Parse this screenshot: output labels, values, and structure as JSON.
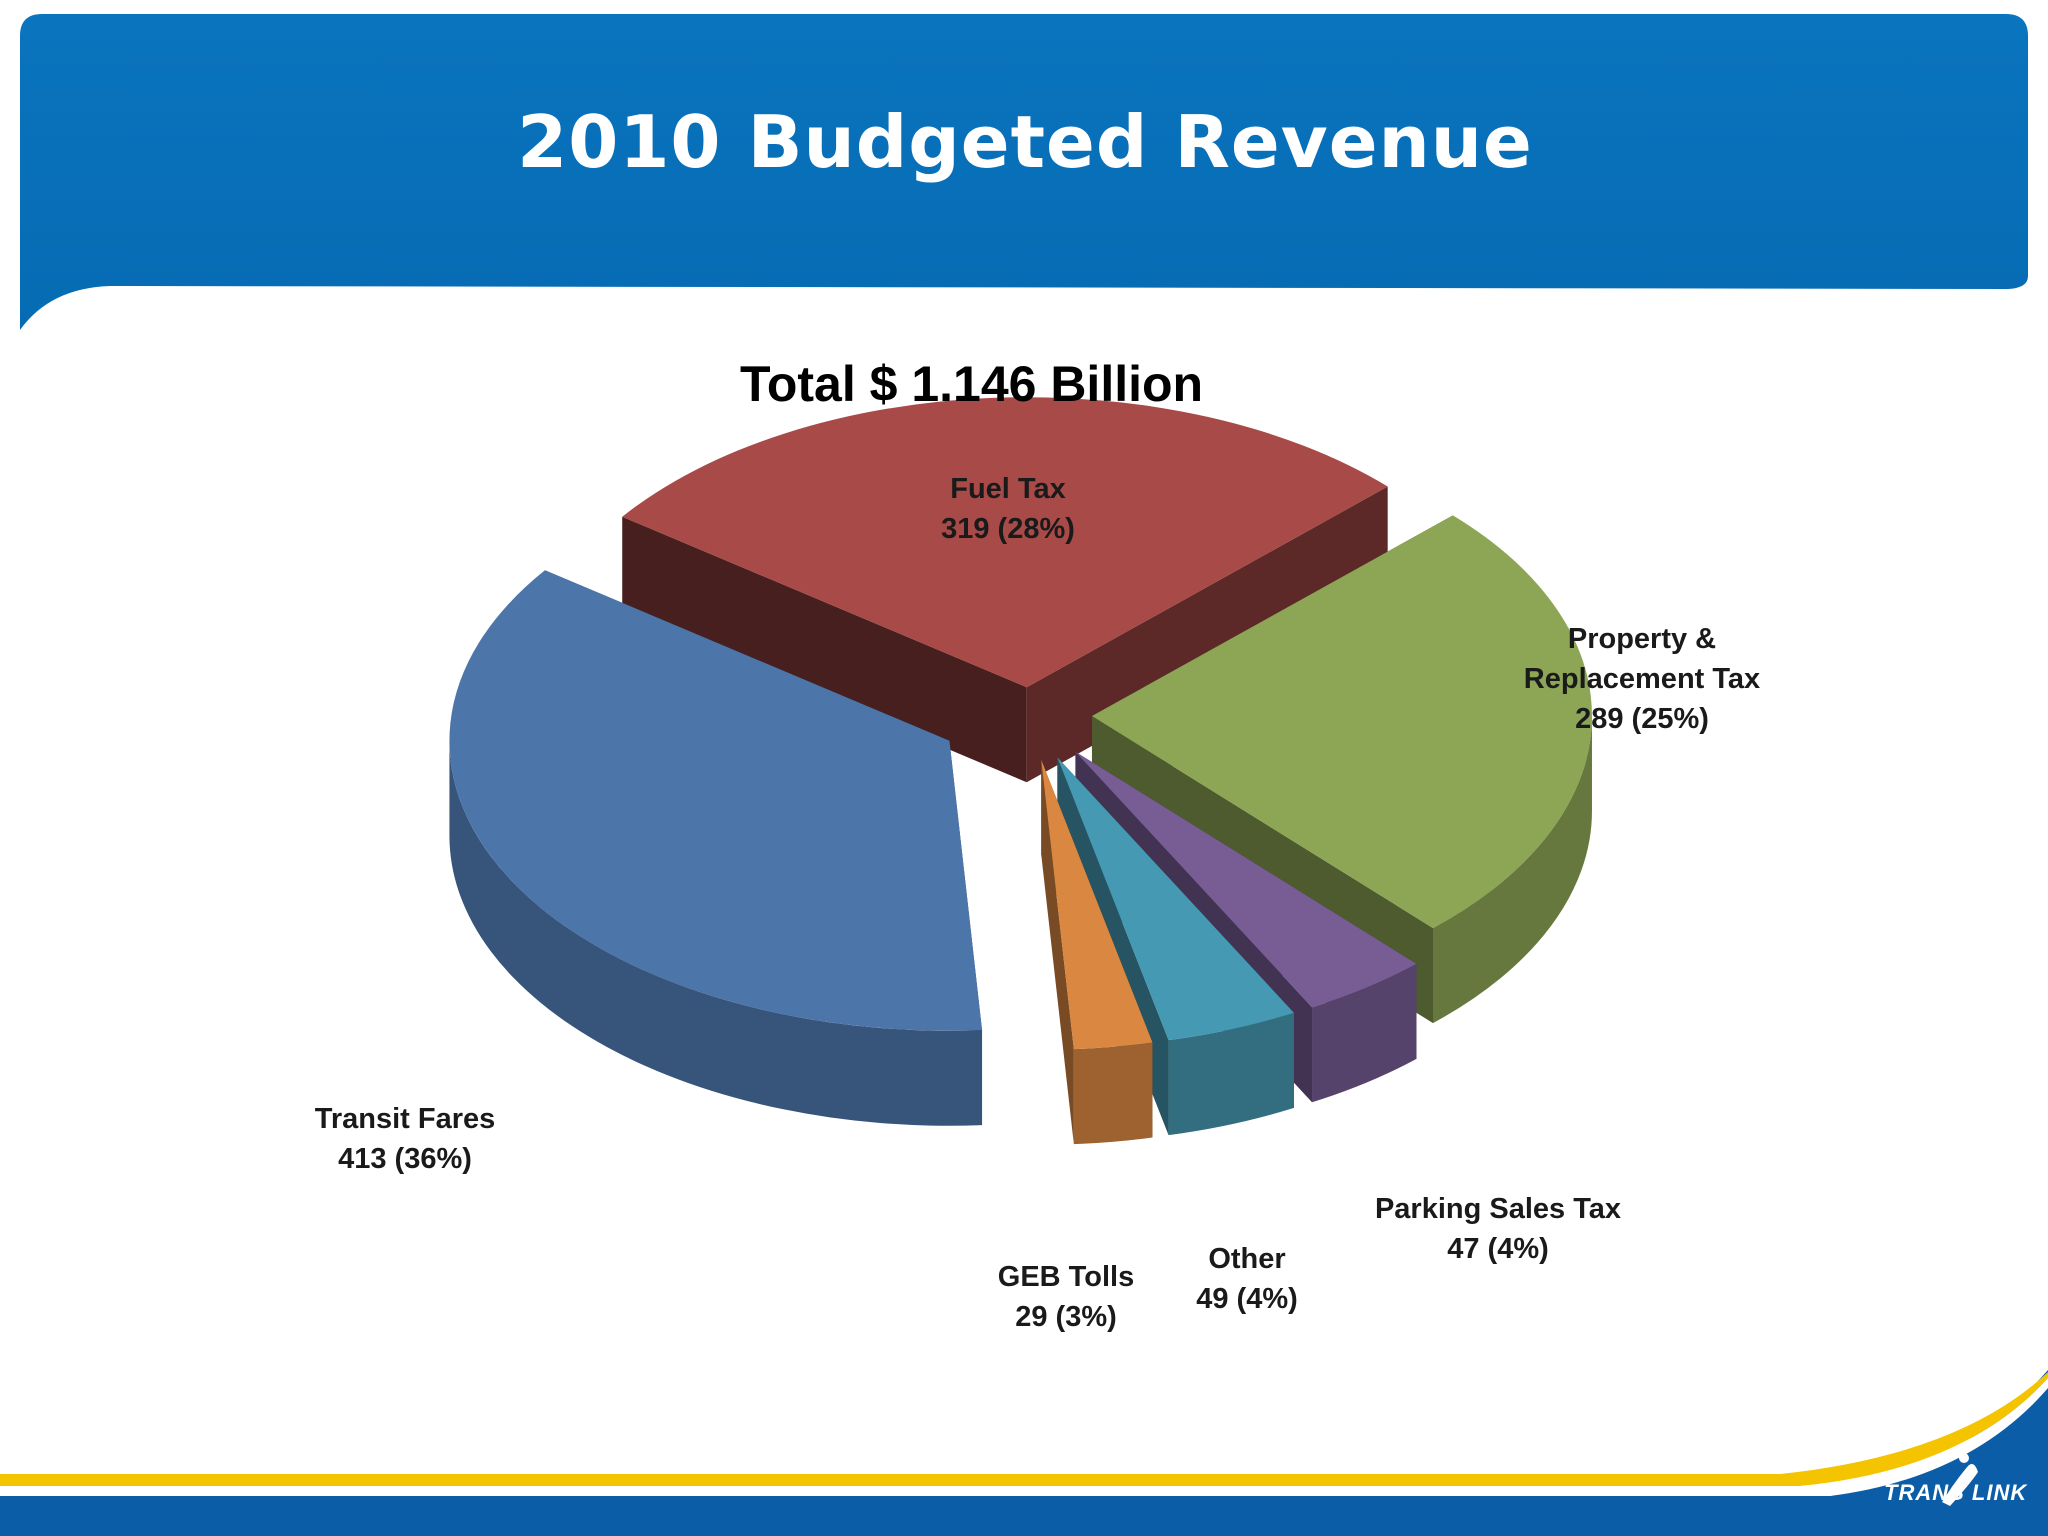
{
  "slide": {
    "title": "2010 Budgeted Revenue",
    "subtitle": "Total $ 1.146 Billion",
    "brand": "TRANS LINK"
  },
  "colors": {
    "banner": "#0870BA",
    "footer_band": "#0B5DA8",
    "footer_stripe": "#F5C400"
  },
  "chart_data": {
    "type": "pie",
    "style": "3d-exploded",
    "title": "Total $ 1.146 Billion",
    "slices": [
      {
        "name": "Fuel Tax",
        "value": 319,
        "percent": 28,
        "label_value": "319  (28%)",
        "color": "#A84A48"
      },
      {
        "name": "Property & Replacement Tax",
        "label_lines": [
          "Property &",
          "Replacement Tax"
        ],
        "value": 289,
        "percent": 25,
        "label_value": "289 (25%)",
        "color": "#8DA655"
      },
      {
        "name": "Parking Sales Tax",
        "value": 47,
        "percent": 4,
        "label_value": "47 (4%)",
        "color": "#775D94"
      },
      {
        "name": "Other",
        "value": 49,
        "percent": 4,
        "label_value": "49  (4%)",
        "color": "#4599B2"
      },
      {
        "name": "GEB Tolls",
        "value": 29,
        "percent": 3,
        "label_value": "29 (3%)",
        "color": "#DA8841"
      },
      {
        "name": "Transit Fares",
        "value": 413,
        "percent": 36,
        "label_value": "413  (36%)",
        "color": "#4C75A9"
      }
    ]
  }
}
